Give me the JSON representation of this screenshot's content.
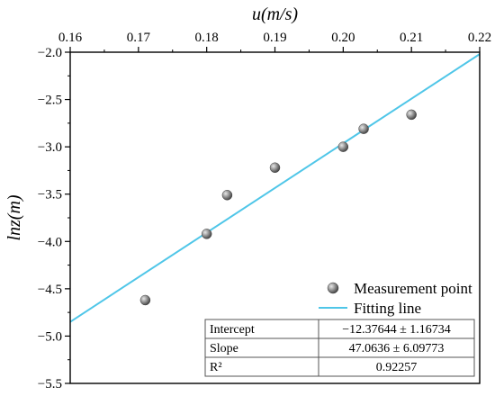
{
  "chart_data": {
    "type": "scatter",
    "xlabel": "u(m/s)",
    "ylabel": "lnz(m)",
    "xlim": [
      0.16,
      0.22
    ],
    "ylim": [
      -5.5,
      -2.0
    ],
    "x_ticks": [
      "0.16",
      "0.17",
      "0.18",
      "0.19",
      "0.20",
      "0.21",
      "0.22"
    ],
    "y_ticks": [
      "−2.0",
      "−2.5",
      "−3.0",
      "−3.5",
      "−4.0",
      "−4.5",
      "−5.0",
      "−5.5"
    ],
    "x_axis_position": "top",
    "grid": false,
    "legend_position": "bottom-right",
    "series": [
      {
        "name": "Measurement point",
        "kind": "scatter",
        "color": "#808080",
        "x": [
          0.171,
          0.18,
          0.183,
          0.19,
          0.2,
          0.203,
          0.21
        ],
        "y": [
          -4.62,
          -3.92,
          -3.51,
          -3.22,
          -3.0,
          -2.81,
          -2.66
        ]
      },
      {
        "name": "Fitting line",
        "kind": "line",
        "color": "#4fc6e8",
        "x": [
          0.16,
          0.22
        ],
        "y": [
          -4.85,
          -2.02
        ]
      }
    ],
    "fit_table": [
      {
        "label": "Intercept",
        "value": "−12.37644 ± 1.16734"
      },
      {
        "label": "Slope",
        "value": "47.0636 ± 6.09773"
      },
      {
        "label": "R²",
        "value": "0.92257"
      }
    ]
  }
}
